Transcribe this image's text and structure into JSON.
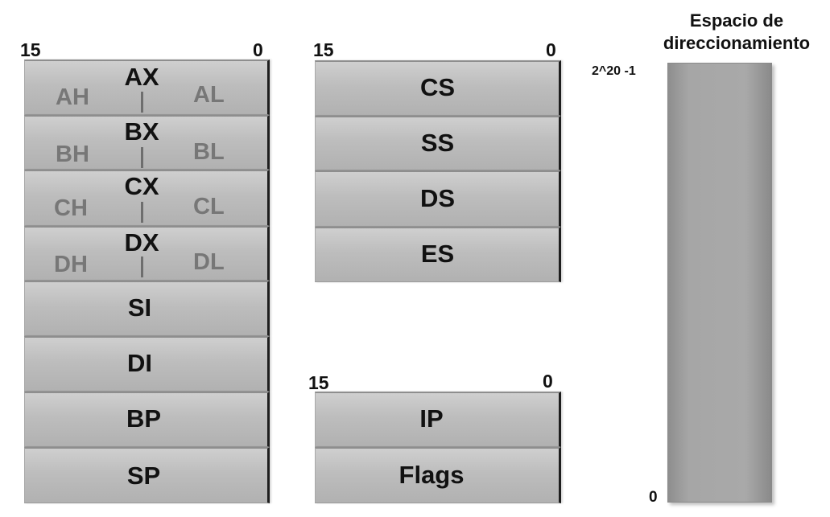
{
  "general_registers": {
    "bit_high": "15",
    "bit_low": "0",
    "split": [
      {
        "name": "AX",
        "high": "AH",
        "low": "AL"
      },
      {
        "name": "BX",
        "high": "BH",
        "low": "BL"
      },
      {
        "name": "CX",
        "high": "CH",
        "low": "CL"
      },
      {
        "name": "DX",
        "high": "DH",
        "low": "DL"
      }
    ],
    "whole": [
      "SI",
      "DI",
      "BP",
      "SP"
    ]
  },
  "segment_registers": {
    "bit_high": "15",
    "bit_low": "0",
    "items": [
      "CS",
      "SS",
      "DS",
      "ES"
    ]
  },
  "control_registers": {
    "bit_high": "15",
    "bit_low": "0",
    "items": [
      "IP",
      "Flags"
    ]
  },
  "address_space": {
    "title_line1": "Espacio de",
    "title_line2": "direccionamiento",
    "top_label": "2^20 -1",
    "bottom_label": "0"
  }
}
